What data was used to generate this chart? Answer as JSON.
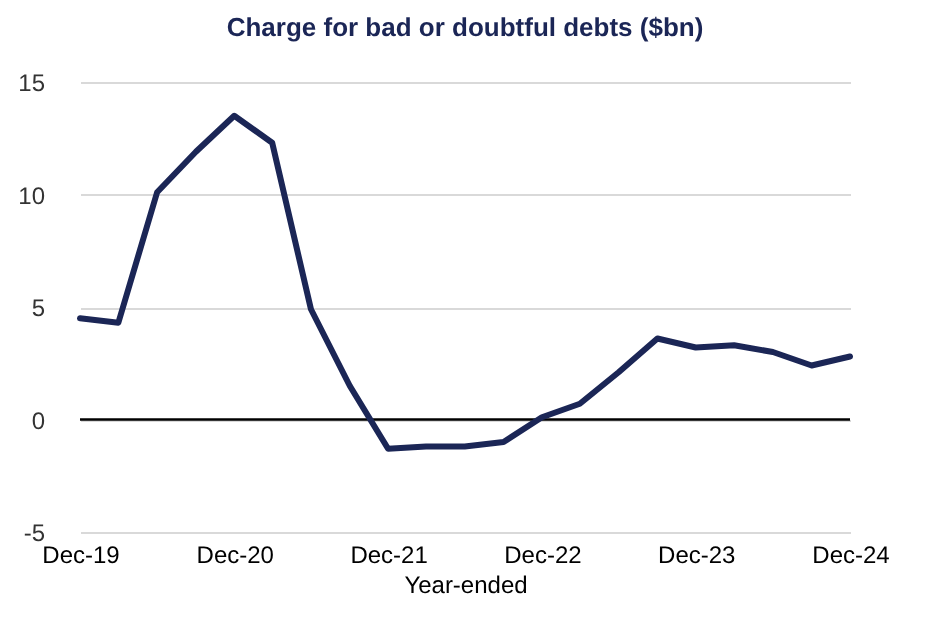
{
  "chart_data": {
    "type": "line",
    "title": "Charge for bad or doubtful debts ($bn)",
    "xlabel": "Year-ended",
    "x": [
      "2019-12",
      "2020-03",
      "2020-06",
      "2020-09",
      "2020-12",
      "2021-03",
      "2021-06",
      "2021-09",
      "2021-12",
      "2022-03",
      "2022-06",
      "2022-09",
      "2022-12",
      "2023-03",
      "2023-06",
      "2023-09",
      "2023-12",
      "2024-03",
      "2024-06",
      "2024-09",
      "2024-12"
    ],
    "series": [
      {
        "color": "#1b2656",
        "values": [
          4.5,
          4.3,
          10.1,
          11.9,
          13.5,
          12.3,
          4.9,
          1.5,
          -1.3,
          -1.2,
          -1.2,
          -1.0,
          0.1,
          0.7,
          2.1,
          3.6,
          3.2,
          3.3,
          3.0,
          2.4,
          2.8
        ]
      }
    ],
    "xlim": [
      "2019-12",
      "2024-12"
    ],
    "xticks": [
      {
        "value": "2019-12",
        "label": "Dec-19"
      },
      {
        "value": "2020-12",
        "label": "Dec-20"
      },
      {
        "value": "2021-12",
        "label": "Dec-21"
      },
      {
        "value": "2022-12",
        "label": "Dec-22"
      },
      {
        "value": "2023-12",
        "label": "Dec-23"
      },
      {
        "value": "2024-12",
        "label": "Dec-24"
      }
    ],
    "ylim": [
      -5,
      15
    ],
    "yticks": [
      -5,
      0,
      5,
      10,
      15
    ],
    "grid": "y",
    "marker": "none",
    "line_style": "solid",
    "ref_lines": [
      {
        "axis": "y",
        "value": 0,
        "color": "#000000"
      }
    ]
  }
}
